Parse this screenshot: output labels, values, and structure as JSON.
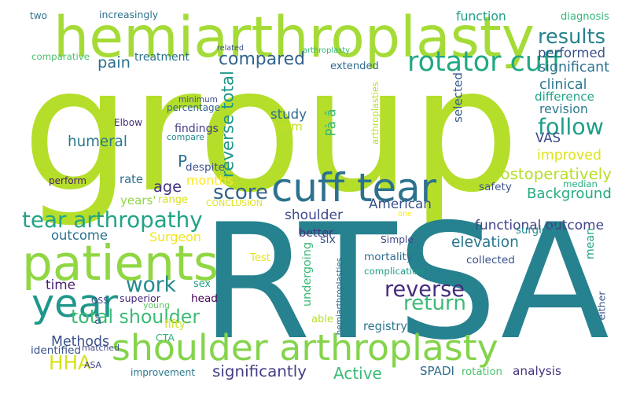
{
  "words": [
    {
      "text": "group",
      "color": "#b5de2b"
    },
    {
      "text": "RTSA",
      "color": "#26828e"
    },
    {
      "text": "hemiarthroplasty",
      "color": "#a5db36"
    },
    {
      "text": "shoulder arthroplasty",
      "color": "#84d44b"
    },
    {
      "text": "patients",
      "color": "#90d743"
    },
    {
      "text": "cuff tear",
      "color": "#2c728e"
    },
    {
      "text": "year",
      "color": "#1f978b"
    },
    {
      "text": "tear arthropathy",
      "color": "#20a386"
    },
    {
      "text": "total shoulder",
      "color": "#3cbb75"
    },
    {
      "text": "rotator cuff",
      "color": "#22a884"
    },
    {
      "text": "work",
      "color": "#238a8d"
    },
    {
      "text": "follow",
      "color": "#1f9e89"
    },
    {
      "text": "reverse",
      "color": "#472d7b"
    },
    {
      "text": "score",
      "color": "#33638d"
    },
    {
      "text": "compared",
      "color": "#33638d"
    },
    {
      "text": "results",
      "color": "#26828e"
    },
    {
      "text": "return",
      "color": "#3cbb75"
    },
    {
      "text": "HHA",
      "color": "#d8e219"
    },
    {
      "text": "reverse total",
      "color": "#1f968b"
    },
    {
      "text": "humeral",
      "color": "#2a788e"
    },
    {
      "text": "functional outcome",
      "color": "#404387"
    },
    {
      "text": "elevation",
      "color": "#2a768e"
    },
    {
      "text": "pain",
      "color": "#2d708e"
    },
    {
      "text": "performed",
      "color": "#3b528b"
    },
    {
      "text": "postoperatively",
      "color": "#b5de2b"
    },
    {
      "text": "Background",
      "color": "#25ab82"
    },
    {
      "text": "outcome",
      "color": "#2c728e"
    },
    {
      "text": "improved",
      "color": "#dde318"
    },
    {
      "text": "significantly",
      "color": "#433e85"
    },
    {
      "text": "Active",
      "color": "#3cbb75"
    },
    {
      "text": "months",
      "color": "#fde725"
    },
    {
      "text": "age",
      "color": "#453781"
    },
    {
      "text": "mean",
      "color": "#20a386"
    },
    {
      "text": "selected",
      "color": "#365c8d"
    },
    {
      "text": "undergoing",
      "color": "#3aba76"
    },
    {
      "text": "significant",
      "color": "#2c728e"
    },
    {
      "text": "Pà â",
      "color": "#35b779"
    },
    {
      "text": "clinical",
      "color": "#2a788e"
    },
    {
      "text": "difference",
      "color": "#20a386"
    },
    {
      "text": "revision",
      "color": "#29798e"
    },
    {
      "text": "Methods",
      "color": "#3b528b"
    },
    {
      "text": "time",
      "color": "#481f70"
    },
    {
      "text": "study",
      "color": "#2f6c8e"
    },
    {
      "text": "shoulder",
      "color": "#3e4989"
    },
    {
      "text": "American",
      "color": "#3a538b"
    },
    {
      "text": "extended",
      "color": "#2f6b8e"
    },
    {
      "text": "treatment",
      "color": "#2c728e"
    },
    {
      "text": "function",
      "color": "#1fa088"
    },
    {
      "text": "VAS",
      "color": "#3e4989"
    },
    {
      "text": "analysis",
      "color": "#463480"
    },
    {
      "text": "rate",
      "color": "#2e6e8e"
    },
    {
      "text": "P",
      "color": "#2d708e"
    },
    {
      "text": "head",
      "color": "#440154"
    },
    {
      "text": "Surgeon",
      "color": "#f1e51d"
    },
    {
      "text": "better",
      "color": "#46337f"
    },
    {
      "text": "SPADI",
      "color": "#2e6e8e"
    },
    {
      "text": "improvement",
      "color": "#29798e"
    },
    {
      "text": "term",
      "color": "#c2df23"
    },
    {
      "text": "mortality",
      "color": "#2f6b8e"
    },
    {
      "text": "complication",
      "color": "#1e9c89"
    },
    {
      "text": "registry",
      "color": "#2b748e"
    },
    {
      "text": "collected",
      "color": "#3b528b"
    },
    {
      "text": "surgical",
      "color": "#24868e"
    },
    {
      "text": "Simple",
      "color": "#3f4788"
    },
    {
      "text": "range",
      "color": "#d8e219"
    },
    {
      "text": "findings",
      "color": "#433e85"
    },
    {
      "text": "compare",
      "color": "#24868e"
    },
    {
      "text": "percentage",
      "color": "#31668e"
    },
    {
      "text": "minimum",
      "color": "#3b528b"
    },
    {
      "text": "despite",
      "color": "#3b528b"
    },
    {
      "text": "Elbow",
      "color": "#46327e"
    },
    {
      "text": "perform",
      "color": "#481b6d"
    },
    {
      "text": "years'",
      "color": "#90d743"
    },
    {
      "text": "CONCLUSION",
      "color": "#dde318"
    },
    {
      "text": "safety",
      "color": "#3b528b"
    },
    {
      "text": "median",
      "color": "#2ab07f"
    },
    {
      "text": "diagnosis",
      "color": "#35b779"
    },
    {
      "text": "two",
      "color": "#2d708e"
    },
    {
      "text": "comparative",
      "color": "#4ac16d"
    },
    {
      "text": "increasingly",
      "color": "#2c728e"
    },
    {
      "text": "related",
      "color": "#3b528b"
    },
    {
      "text": "arthroplasty",
      "color": "#35b779"
    },
    {
      "text": "arthroplasties",
      "color": "#b8de29"
    },
    {
      "text": "hemiarthroplasties",
      "color": "#31668e"
    },
    {
      "text": "OSS",
      "color": "#404387"
    },
    {
      "text": "superior",
      "color": "#482878"
    },
    {
      "text": "sex",
      "color": "#1f9e89"
    },
    {
      "text": "young",
      "color": "#5ec962"
    },
    {
      "text": "fifty",
      "color": "#d0e11c"
    },
    {
      "text": "â",
      "color": "#38588c"
    },
    {
      "text": "matched",
      "color": "#3e4989"
    },
    {
      "text": "CTA",
      "color": "#31b57b"
    },
    {
      "text": "identified",
      "color": "#3b528b"
    },
    {
      "text": "ASA",
      "color": "#404387"
    },
    {
      "text": "Test",
      "color": "#e5e419"
    },
    {
      "text": "one",
      "color": "#fde725"
    },
    {
      "text": "six",
      "color": "#38588c"
    },
    {
      "text": "able",
      "color": "#b5de2b"
    },
    {
      "text": "either",
      "color": "#39568c"
    },
    {
      "text": "rotation",
      "color": "#4ac16d"
    }
  ]
}
